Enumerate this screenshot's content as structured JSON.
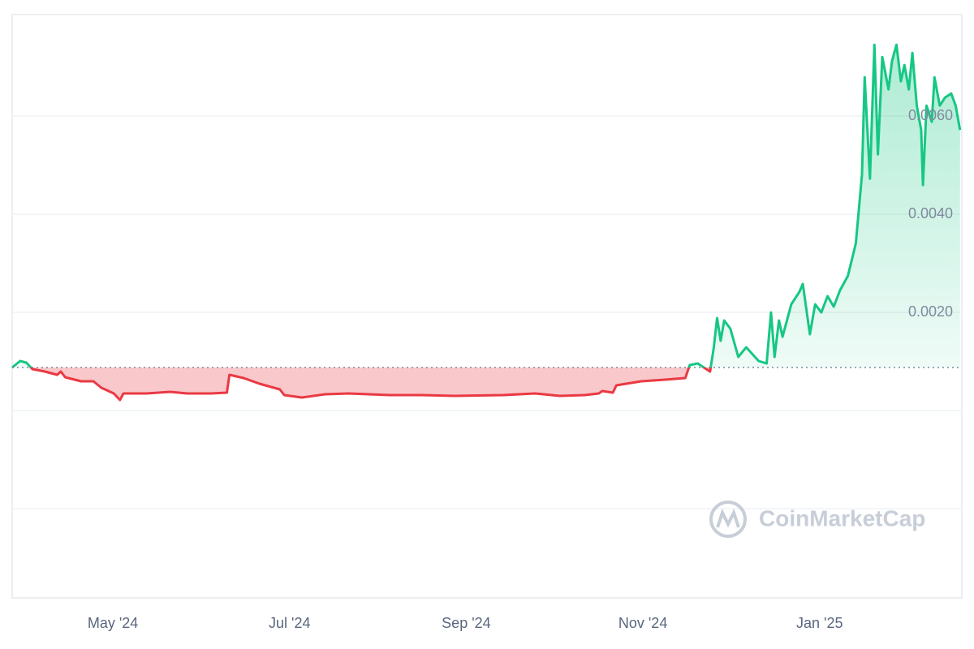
{
  "chart_data": {
    "type": "line",
    "watermark": "CoinMarketCap",
    "x": [
      2.86,
      2.95,
      3.02,
      3.09,
      3.23,
      3.37,
      3.41,
      3.46,
      3.64,
      3.78,
      3.87,
      4.01,
      4.08,
      4.12,
      4.38,
      4.65,
      4.84,
      5.11,
      5.29,
      5.32,
      5.48,
      5.66,
      5.89,
      5.94,
      6.14,
      6.4,
      6.67,
      7.13,
      7.5,
      7.87,
      8.42,
      8.78,
      9.06,
      9.34,
      9.5,
      9.54,
      9.66,
      9.7,
      9.98,
      10.25,
      10.48,
      10.53,
      10.62,
      10.76,
      10.8,
      10.84,
      10.88,
      10.92,
      10.99,
      11.08,
      11.17,
      11.31,
      11.4,
      11.45,
      11.49,
      11.54,
      11.58,
      11.68,
      11.77,
      11.81,
      11.89,
      11.95,
      12.02,
      12.09,
      12.16,
      12.23,
      12.32,
      12.37,
      12.41,
      12.48,
      12.51,
      12.57,
      12.62,
      12.66,
      12.71,
      12.78,
      12.82,
      12.87,
      12.92,
      12.96,
      13.01,
      13.05,
      13.1,
      13.15,
      13.17,
      13.21,
      13.27,
      13.3,
      13.36,
      13.42,
      13.49,
      13.54,
      13.59
    ],
    "series": [
      {
        "values": [
          0.000876,
          0.001008,
          0.000975,
          0.000843,
          0.000793,
          0.000727,
          0.000793,
          0.000678,
          0.000595,
          0.000595,
          0.000463,
          0.000347,
          0.000215,
          0.000347,
          0.000347,
          0.00038,
          0.000347,
          0.000347,
          0.000364,
          0.000727,
          0.000661,
          0.000545,
          0.00043,
          0.000314,
          0.000264,
          0.000331,
          0.000347,
          0.000314,
          0.000314,
          0.000298,
          0.000314,
          0.000347,
          0.000298,
          0.000314,
          0.000347,
          0.000397,
          0.000364,
          0.000512,
          0.000595,
          0.000628,
          0.000661,
          0.000926,
          0.000959,
          0.000793,
          0.001256,
          0.001884,
          0.001421,
          0.001835,
          0.001669,
          0.001091,
          0.001289,
          0.001008,
          0.000959,
          0.002,
          0.001091,
          0.001835,
          0.001504,
          0.002165,
          0.002413,
          0.002579,
          0.001554,
          0.002165,
          0.002,
          0.002331,
          0.002116,
          0.002446,
          0.002744,
          0.003107,
          0.003405,
          0.00481,
          0.006793,
          0.004727,
          0.007455,
          0.005223,
          0.007207,
          0.006545,
          0.007124,
          0.007455,
          0.006711,
          0.007041,
          0.006545,
          0.007289,
          0.006215,
          0.005719,
          0.004595,
          0.006215,
          0.005884,
          0.006793,
          0.006215,
          0.00638,
          0.006463,
          0.006215,
          0.005719
        ]
      }
    ],
    "baseline": 0.000876,
    "color_up": "#16c784",
    "color_down": "#ea3943",
    "xlim": [
      2.86,
      13.61
    ],
    "xticks": [
      {
        "value": 4,
        "label": "May '24"
      },
      {
        "value": 6,
        "label": "Jul '24"
      },
      {
        "value": 8,
        "label": "Sep '24"
      },
      {
        "value": 10,
        "label": "Nov '24"
      },
      {
        "value": 12,
        "label": "Jan '25"
      }
    ],
    "ylim": [
      -0.00382,
      0.00807
    ],
    "yticks": [
      {
        "value": 0.006,
        "label": "0.0060"
      },
      {
        "value": 0.004,
        "label": "0.0040"
      },
      {
        "value": 0.002,
        "label": "0.0020"
      },
      {
        "value": 0,
        "label": null
      },
      {
        "value": -0.002,
        "label": null
      }
    ],
    "grid": true
  }
}
